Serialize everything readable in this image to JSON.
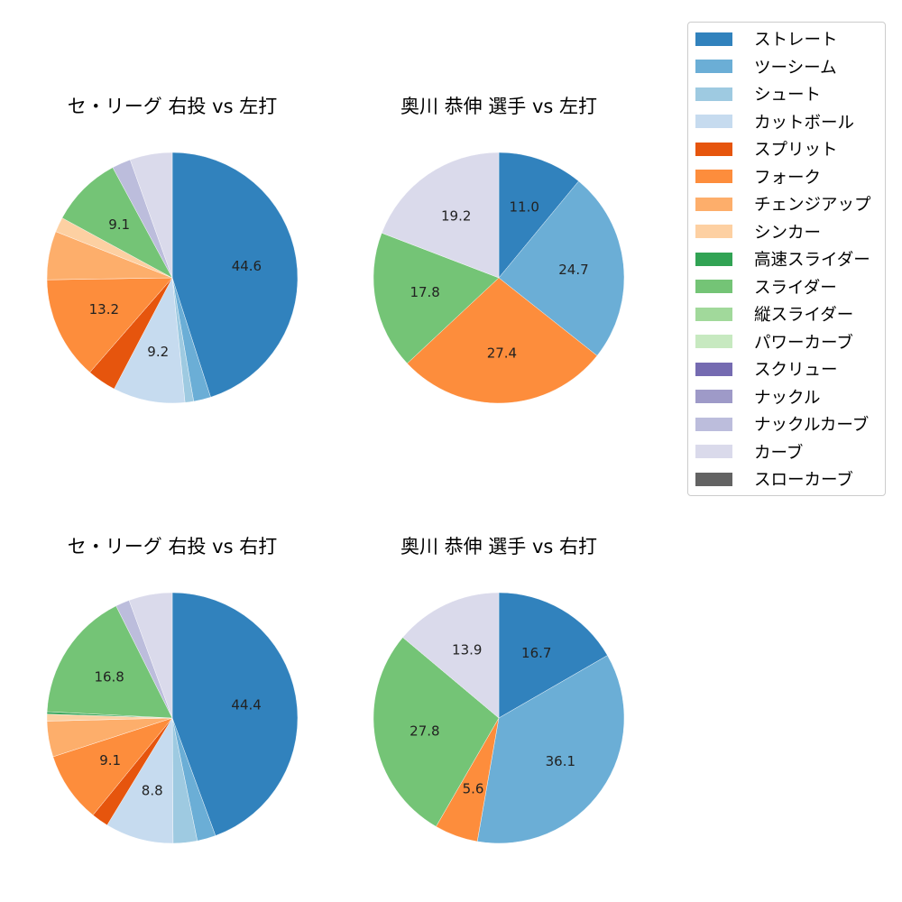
{
  "legend": {
    "items": [
      {
        "label": "ストレート",
        "color": "#3182bd"
      },
      {
        "label": "ツーシーム",
        "color": "#6baed6"
      },
      {
        "label": "シュート",
        "color": "#9ecae1"
      },
      {
        "label": "カットボール",
        "color": "#c6dbef"
      },
      {
        "label": "スプリット",
        "color": "#e6550d"
      },
      {
        "label": "フォーク",
        "color": "#fd8d3c"
      },
      {
        "label": "チェンジアップ",
        "color": "#fdae6b"
      },
      {
        "label": "シンカー",
        "color": "#fdd0a2"
      },
      {
        "label": "高速スライダー",
        "color": "#31a354"
      },
      {
        "label": "スライダー",
        "color": "#74c476"
      },
      {
        "label": "縦スライダー",
        "color": "#a1d99b"
      },
      {
        "label": "パワーカーブ",
        "color": "#c7e9c0"
      },
      {
        "label": "スクリュー",
        "color": "#756bb1"
      },
      {
        "label": "ナックル",
        "color": "#9e9ac8"
      },
      {
        "label": "ナックルカーブ",
        "color": "#bcbddc"
      },
      {
        "label": "カーブ",
        "color": "#dadaeb"
      },
      {
        "label": "スローカーブ",
        "color": "#636363"
      }
    ]
  },
  "panels": [
    {
      "title": "セ・リーグ 右投 vs 左打"
    },
    {
      "title": "奥川 恭伸 選手 vs 左打"
    },
    {
      "title": "セ・リーグ 右投 vs 右打"
    },
    {
      "title": "奥川 恭伸 選手 vs 右打"
    }
  ],
  "chart_data": [
    {
      "type": "pie",
      "title": "セ・リーグ 右投 vs 左打",
      "categories": [
        "ストレート",
        "ツーシーム",
        "シュート",
        "カットボール",
        "スプリット",
        "フォーク",
        "チェンジアップ",
        "シンカー",
        "スライダー",
        "ナックルカーブ",
        "カーブ"
      ],
      "values": [
        44.6,
        2.2,
        1.1,
        9.2,
        3.7,
        13.2,
        6.2,
        1.9,
        9.1,
        2.4,
        5.4
      ],
      "labels_shown": [
        "44.6",
        "",
        "",
        "9.2",
        "",
        "13.2",
        "",
        "",
        "9.1",
        "",
        ""
      ],
      "start_angle": 90,
      "direction": "clockwise"
    },
    {
      "type": "pie",
      "title": "奥川 恭伸 選手 vs 左打",
      "categories": [
        "ストレート",
        "ツーシーム",
        "フォーク",
        "スライダー",
        "カーブ"
      ],
      "values": [
        11.0,
        24.7,
        27.4,
        17.8,
        19.2
      ],
      "labels_shown": [
        "11.0",
        "24.7",
        "27.4",
        "17.8",
        "19.2"
      ],
      "start_angle": 90,
      "direction": "clockwise"
    },
    {
      "type": "pie",
      "title": "セ・リーグ 右投 vs 右打",
      "categories": [
        "ストレート",
        "ツーシーム",
        "シュート",
        "カットボール",
        "スプリット",
        "フォーク",
        "チェンジアップ",
        "シンカー",
        "高速スライダー",
        "スライダー",
        "ナックルカーブ",
        "カーブ"
      ],
      "values": [
        44.4,
        2.4,
        3.1,
        8.8,
        2.2,
        9.1,
        4.6,
        0.9,
        0.3,
        16.8,
        1.8,
        5.6
      ],
      "labels_shown": [
        "44.4",
        "",
        "",
        "8.8",
        "",
        "9.1",
        "",
        "",
        "",
        "16.8",
        "",
        ""
      ],
      "start_angle": 90,
      "direction": "clockwise"
    },
    {
      "type": "pie",
      "title": "奥川 恭伸 選手 vs 右打",
      "categories": [
        "ストレート",
        "ツーシーム",
        "フォーク",
        "スライダー",
        "カーブ"
      ],
      "values": [
        16.7,
        36.1,
        5.6,
        27.8,
        13.9
      ],
      "labels_shown": [
        "16.7",
        "36.1",
        "5.6",
        "27.8",
        "13.9"
      ],
      "start_angle": 90,
      "direction": "clockwise"
    }
  ]
}
